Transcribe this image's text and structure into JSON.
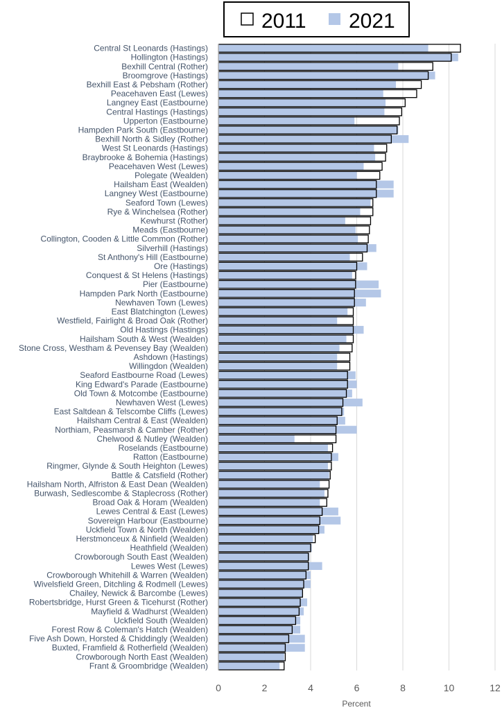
{
  "chart_data": {
    "type": "bar",
    "orientation": "horizontal",
    "xlabel": "Percent",
    "xlim": [
      0,
      12
    ],
    "xticks": [
      0,
      2,
      4,
      6,
      8,
      10,
      12
    ],
    "grid": true,
    "legend_position": "top",
    "colors": {
      "2011_fill": "#ffffff",
      "2011_edge": "#000000",
      "2021_fill": "#b4c7e7",
      "gridline": "#d9d9d9",
      "label": "#44546a"
    },
    "series": [
      {
        "name": "2011",
        "style": "outline",
        "values": [
          10.5,
          10.1,
          9.3,
          9.1,
          8.8,
          8.6,
          8.1,
          7.95,
          7.85,
          7.75,
          7.5,
          7.3,
          7.25,
          7.1,
          7.0,
          6.85,
          6.85,
          6.7,
          6.7,
          6.6,
          6.55,
          6.5,
          6.45,
          6.25,
          6.0,
          5.95,
          5.95,
          5.9,
          5.9,
          5.85,
          5.85,
          5.85,
          5.85,
          5.8,
          5.7,
          5.7,
          5.6,
          5.6,
          5.55,
          5.4,
          5.35,
          5.15,
          5.1,
          5.1,
          4.95,
          4.9,
          4.9,
          4.85,
          4.8,
          4.75,
          4.7,
          4.5,
          4.4,
          4.35,
          4.2,
          4.0,
          3.9,
          3.9,
          3.8,
          3.7,
          3.65,
          3.55,
          3.5,
          3.35,
          3.2,
          3.05,
          2.9,
          2.9,
          2.85
        ]
      },
      {
        "name": "2021",
        "style": "filled",
        "values": [
          9.1,
          10.4,
          7.8,
          9.4,
          7.7,
          7.15,
          7.25,
          7.2,
          5.9,
          7.8,
          8.25,
          6.75,
          6.8,
          6.3,
          6.0,
          7.6,
          7.6,
          6.6,
          6.15,
          5.5,
          5.95,
          6.05,
          6.85,
          5.7,
          6.45,
          5.8,
          6.95,
          7.05,
          6.4,
          5.6,
          5.15,
          6.3,
          5.55,
          5.25,
          5.15,
          5.15,
          5.95,
          6.0,
          5.8,
          6.25,
          5.45,
          5.5,
          6.0,
          3.3,
          4.75,
          5.2,
          4.75,
          4.8,
          4.4,
          4.6,
          4.4,
          5.2,
          5.3,
          4.6,
          4.1,
          4.05,
          3.95,
          4.5,
          4.0,
          4.0,
          3.65,
          3.85,
          3.7,
          3.55,
          3.55,
          3.75,
          3.75,
          2.85,
          2.65
        ]
      }
    ],
    "categories": [
      "Central St Leonards (Hastings)",
      "Hollington (Hastings)",
      "Bexhill Central (Rother)",
      "Broomgrove (Hastings)",
      "Bexhill East & Pebsham (Rother)",
      "Peacehaven East (Lewes)",
      "Langney East (Eastbourne)",
      "Central Hastings (Hastings)",
      "Upperton (Eastbourne)",
      "Hampden Park South (Eastbourne)",
      "Bexhill North & Sidley (Rother)",
      "West St Leonards (Hastings)",
      "Braybrooke & Bohemia (Hastings)",
      "Peacehaven West (Lewes)",
      "Polegate (Wealden)",
      "Hailsham East (Wealden)",
      "Langney West (Eastbourne)",
      "Seaford Town (Lewes)",
      "Rye & Winchelsea (Rother)",
      "Kewhurst (Rother)",
      "Meads (Eastbourne)",
      "Collington, Cooden & Little Common (Rother)",
      "Silverhill (Hastings)",
      "St Anthony's Hill (Eastbourne)",
      "Ore (Hastings)",
      "Conquest & St Helens (Hastings)",
      "Pier (Eastbourne)",
      "Hampden Park North (Eastbourne)",
      "Newhaven Town (Lewes)",
      "East Blatchington (Lewes)",
      "Westfield, Fairlight & Broad Oak (Rother)",
      "Old Hastings (Hastings)",
      "Hailsham South & West (Wealden)",
      "Stone Cross, Westham & Pevensey Bay (Wealden)",
      "Ashdown (Hastings)",
      "Willingdon (Wealden)",
      "Seaford Eastbourne Road (Lewes)",
      "King Edward's Parade (Eastbourne)",
      "Old Town & Motcombe (Eastbourne)",
      "Newhaven West (Lewes)",
      "East Saltdean & Telscombe Cliffs (Lewes)",
      "Hailsham Central & East (Wealden)",
      "Northiam, Peasmarsh & Camber (Rother)",
      "Chelwood & Nutley (Wealden)",
      "Roselands (Eastbourne)",
      "Ratton (Eastbourne)",
      "Ringmer, Glynde & South Heighton (Lewes)",
      "Battle & Catsfield (Rother)",
      "Hailsham North, Alfriston & East Dean (Wealden)",
      "Burwash, Sedlescombe & Staplecross (Rother)",
      "Broad Oak & Horam (Wealden)",
      "Lewes Central & East (Lewes)",
      "Sovereign Harbour (Eastbourne)",
      "Uckfield Town & North (Wealden)",
      "Herstmonceux & Ninfield (Wealden)",
      "Heathfield (Wealden)",
      "Crowborough South East (Wealden)",
      "Lewes West (Lewes)",
      "Crowborough Whitehill & Warren (Wealden)",
      "Wivelsfield Green, Ditchling & Rodmell (Lewes)",
      "Chailey, Newick & Barcombe (Lewes)",
      "Robertsbridge, Hurst Green & Ticehurst (Rother)",
      "Mayfield & Wadhurst (Wealden)",
      "Uckfield South (Wealden)",
      "Forest Row & Coleman's Hatch (Wealden)",
      "Five Ash Down, Horsted & Chiddingly (Wealden)",
      "Buxted, Framfield & Rotherfield (Wealden)",
      "Crowborough North East (Wealden)",
      "Frant & Groombridge (Wealden)"
    ]
  }
}
